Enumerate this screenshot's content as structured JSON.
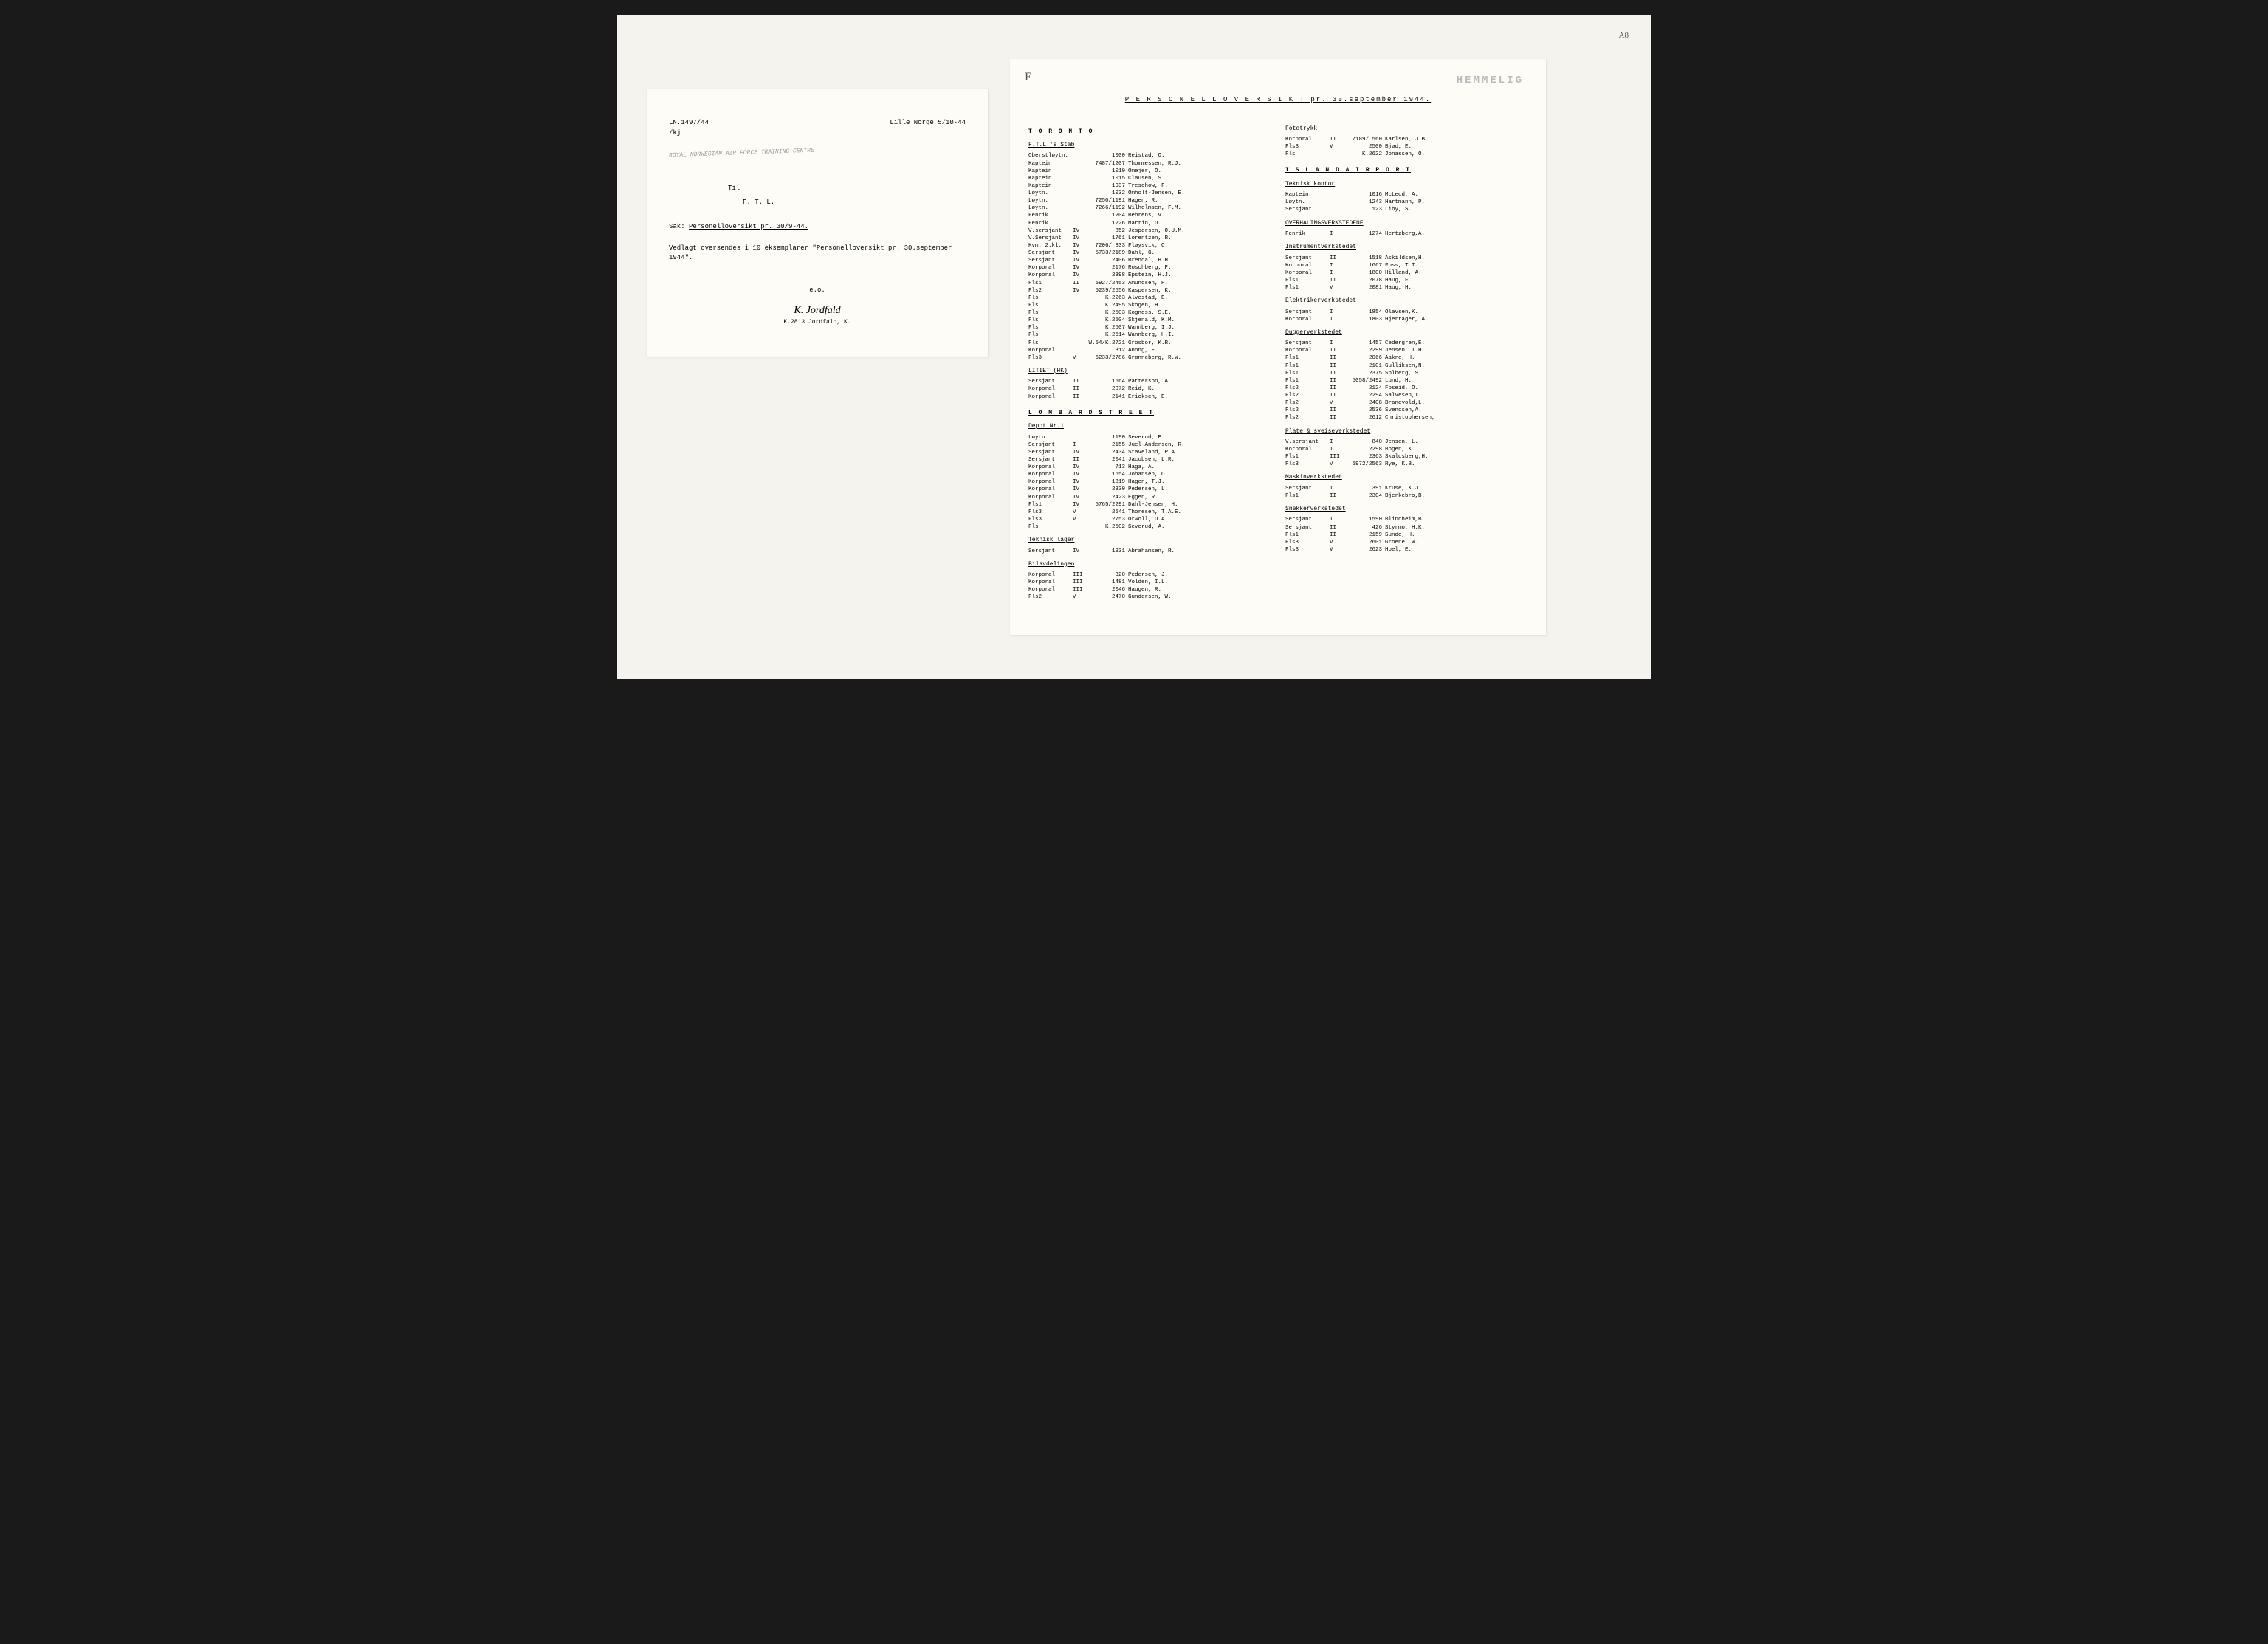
{
  "left": {
    "ref": "LN.1497/44",
    "ref2": "/kj",
    "location_date": "Lille Norge 5/10-44",
    "page_mark": "A8",
    "stamp": "ROYAL NORWEGIAN AIR FORCE TRAINING CENTRE",
    "stamp_hand": "7/10",
    "til": "Til",
    "ftl": "F. T. L.",
    "sak_label": "Sak:",
    "sak_text": "Personelloversikt pr. 30/9-44.",
    "body": "Vedlagt oversendes i 10 eksemplarer \"Personelloversikt pr. 30.september 1944\".",
    "eo": "e.o.",
    "sig_name": "K.2813 Jordfald, K."
  },
  "right": {
    "hemmelig": "HEMMELIG",
    "hand_e": "E",
    "title": "P E R S O N E L L O V E R S I K T  pr. 30.september 1944.",
    "toronto": "T O R O N T O",
    "ftl_stab": "F.T.L.'s Stab",
    "stab": [
      {
        "rank": "Oberstløytn.",
        "g": "",
        "n": "1000",
        "name": "Reistad, O."
      },
      {
        "rank": "Kaptein",
        "g": "",
        "n": "7487/1207",
        "name": "Thommessen, R.J."
      },
      {
        "rank": "Kaptein",
        "g": "",
        "n": "1010",
        "name": "Omejer, O."
      },
      {
        "rank": "Kaptein",
        "g": "",
        "n": "1015",
        "name": "Clausen, S."
      },
      {
        "rank": "Kaptein",
        "g": "",
        "n": "1037",
        "name": "Treschow, F."
      },
      {
        "rank": "Løytn.",
        "g": "",
        "n": "1032",
        "name": "Omholt-Jensen, E."
      },
      {
        "rank": "Løytn.",
        "g": "",
        "n": "7250/1191",
        "name": "Hagen, R."
      },
      {
        "rank": "Løytn.",
        "g": "",
        "n": "7266/1192",
        "name": "Wilhelmsen, F.M."
      },
      {
        "rank": "Fenrik",
        "g": "",
        "n": "1204",
        "name": "Behrens, V."
      },
      {
        "rank": "Fenrik",
        "g": "",
        "n": "1226",
        "name": "Martin, O."
      },
      {
        "rank": "V.sersjant",
        "g": "IV",
        "n": "852",
        "name": "Jespersen, O.U.M."
      },
      {
        "rank": "V.Sersjant",
        "g": "IV",
        "n": "1761",
        "name": "Lorentzen, R."
      },
      {
        "rank": "Kvm. 2.kl.",
        "g": "IV",
        "n": "7206/ 833",
        "name": "Fløysvik, O."
      },
      {
        "rank": "Sersjant",
        "g": "IV",
        "n": "5733/2189",
        "name": "Dahl, G."
      },
      {
        "rank": "Sersjant",
        "g": "IV",
        "n": "2406",
        "name": "Brendal, H.H."
      },
      {
        "rank": "Korporal",
        "g": "IV",
        "n": "2176",
        "name": "Roschberg, P."
      },
      {
        "rank": "Korporal",
        "g": "IV",
        "n": "2398",
        "name": "Epstein, H.J."
      },
      {
        "rank": "Fls1",
        "g": "II",
        "n": "5927/2453",
        "name": "Amundsen, P."
      },
      {
        "rank": "Fls2",
        "g": "IV",
        "n": "5239/2556",
        "name": "Kaspersen, K."
      },
      {
        "rank": "Fls",
        "g": "",
        "n": "K.2263",
        "name": "Alvestad, E."
      },
      {
        "rank": "Fls",
        "g": "",
        "n": "K.2495",
        "name": "Skogen, H."
      },
      {
        "rank": "Fls",
        "g": "",
        "n": "K.2503",
        "name": "Kogness, S.E."
      },
      {
        "rank": "Fls",
        "g": "",
        "n": "K.2504",
        "name": "Skjenald, K.M."
      },
      {
        "rank": "Fls",
        "g": "",
        "n": "K.2507",
        "name": "Wannberg, I.J."
      },
      {
        "rank": "Fls",
        "g": "",
        "n": "K.2514",
        "name": "Wannberg, H.I."
      },
      {
        "rank": "Fls",
        "g": "",
        "n": "W.54/K.2721",
        "name": "Grosbor, K.R."
      },
      {
        "rank": "Korporal",
        "g": "",
        "n": "312",
        "name": "Anong, E."
      },
      {
        "rank": "Fls3",
        "g": "V",
        "n": "6233/2786",
        "name": "Grønneberg, R.W."
      }
    ],
    "litiet": "LITIET (HK)",
    "litiet_rows": [
      {
        "rank": "Sersjant",
        "g": "II",
        "n": "1664",
        "name": "Patterson, A."
      },
      {
        "rank": "Korporal",
        "g": "II",
        "n": "2072",
        "name": "Reid, K."
      },
      {
        "rank": "Korporal",
        "g": "II",
        "n": "2141",
        "name": "Ericksen, E."
      }
    ],
    "lombard": "L O M B A R D  S T R E E T",
    "depot": "Depot Nr.1",
    "depot_rows": [
      {
        "rank": "Løytn.",
        "g": "",
        "n": "1190",
        "name": "Severud, E."
      },
      {
        "rank": "Sersjant",
        "g": "I",
        "n": "2155",
        "name": "Juel-Andersen, R."
      },
      {
        "rank": "Sersjant",
        "g": "IV",
        "n": "2434",
        "name": "Staveland, P.A."
      },
      {
        "rank": "Sersjant",
        "g": "II",
        "n": "2041",
        "name": "Jacobsen, L.R."
      },
      {
        "rank": "Korporal",
        "g": "IV",
        "n": "713",
        "name": "Haga, A."
      },
      {
        "rank": "Korporal",
        "g": "IV",
        "n": "1654",
        "name": "Johansen, O."
      },
      {
        "rank": "Korporal",
        "g": "IV",
        "n": "1819",
        "name": "Hagen, T.J."
      },
      {
        "rank": "Korporal",
        "g": "IV",
        "n": "2330",
        "name": "Pedersen, L."
      },
      {
        "rank": "Korporal",
        "g": "IV",
        "n": "2423",
        "name": "Eggen, R."
      },
      {
        "rank": "Fls1",
        "g": "IV",
        "n": "5765/2291",
        "name": "Dahl-Jensen, H."
      },
      {
        "rank": "Fls3",
        "g": "V",
        "n": "2541",
        "name": "Thoresen, T.A.E."
      },
      {
        "rank": "Fls3",
        "g": "V",
        "n": "2753",
        "name": "Orwoll, O.A."
      },
      {
        "rank": "Fls",
        "g": "",
        "n": "K.2502",
        "name": "Severud, A."
      }
    ],
    "teknisk_lager": "Teknisk lager",
    "teknisk_rows": [
      {
        "rank": "Sersjant",
        "g": "IV",
        "n": "1931",
        "name": "Abrahamsen, R."
      }
    ],
    "bilavdelingen": "Bilavdelingen",
    "bil_rows": [
      {
        "rank": "Korporal",
        "g": "III",
        "n": "320",
        "name": "Pedersen, J."
      },
      {
        "rank": "Korporal",
        "g": "III",
        "n": "1481",
        "name": "Volden, I.L."
      },
      {
        "rank": "Korporal",
        "g": "III",
        "n": "2046",
        "name": "Haugen, R."
      },
      {
        "rank": "Fls2",
        "g": "V",
        "n": "2470",
        "name": "Gundersen, W."
      }
    ],
    "fototrykk": "Fototrykk",
    "foto_rows": [
      {
        "rank": "Korporal",
        "g": "II",
        "n": "7189/ 560",
        "name": "Karlsen, J.B."
      },
      {
        "rank": "Fls3",
        "g": "V",
        "n": "2500",
        "name": "Bjød, E."
      },
      {
        "rank": "Fls",
        "g": "",
        "n": "K.2622",
        "name": "Jonassen, O."
      }
    ],
    "island": "I S L A N D  A I R P O R T",
    "teknisk_kontor": "Teknisk kontor",
    "tk_rows": [
      {
        "rank": "Kaptein",
        "g": "",
        "n": "1016",
        "name": "McLeod, A."
      },
      {
        "rank": "Løytn.",
        "g": "",
        "n": "1243",
        "name": "Hartmann, P."
      },
      {
        "rank": "Sersjant",
        "g": "",
        "n": "123",
        "name": "Liby, S."
      }
    ],
    "overhalings": "OVERHALINGSVERKSTEDENE",
    "over_rows": [
      {
        "rank": "Fenrik",
        "g": "I",
        "n": "1274",
        "name": "Hertzberg,A."
      }
    ],
    "instrument": "Instrumentverkstedet",
    "inst_rows": [
      {
        "rank": "Sersjant",
        "g": "II",
        "n": "1518",
        "name": "Askildsen,H."
      },
      {
        "rank": "Korporal",
        "g": "I",
        "n": "1667",
        "name": "Foss, T.I."
      },
      {
        "rank": "Korporal",
        "g": "I",
        "n": "1800",
        "name": "Hilland, A."
      },
      {
        "rank": "Fls1",
        "g": "II",
        "n": "2078",
        "name": "Haug, F."
      },
      {
        "rank": "Fls1",
        "g": "V",
        "n": "2081",
        "name": "Haug, H."
      }
    ],
    "elektriker": "Elektrikerverkstedet",
    "elek_rows": [
      {
        "rank": "Sersjant",
        "g": "I",
        "n": "1854",
        "name": "Olavsen,K."
      },
      {
        "rank": "Korporal",
        "g": "I",
        "n": "1803",
        "name": "Hjertager, A."
      }
    ],
    "dugger": "Duggerverkstedet",
    "dug_rows": [
      {
        "rank": "Sersjant",
        "g": "I",
        "n": "1457",
        "name": "Cedergren,E."
      },
      {
        "rank": "Korporal",
        "g": "II",
        "n": "2299",
        "name": "Jensen, T.H."
      },
      {
        "rank": "Fls1",
        "g": "II",
        "n": "2066",
        "name": "Aakre, H."
      },
      {
        "rank": "Fls1",
        "g": "II",
        "n": "2101",
        "name": "Gulliksen,N."
      },
      {
        "rank": "Fls1",
        "g": "II",
        "n": "2375",
        "name": "Solberg, S."
      },
      {
        "rank": "Fls1",
        "g": "II",
        "n": "5058/2492",
        "name": "Lund, H."
      },
      {
        "rank": "Fls2",
        "g": "II",
        "n": "2124",
        "name": "Foseid, O."
      },
      {
        "rank": "Fls2",
        "g": "II",
        "n": "2294",
        "name": "Salvesen,T."
      },
      {
        "rank": "Fls2",
        "g": "V",
        "n": "2408",
        "name": "Brandvold,L."
      },
      {
        "rank": "Fls2",
        "g": "II",
        "n": "2536",
        "name": "Svendsen,A."
      },
      {
        "rank": "Fls2",
        "g": "II",
        "n": "2612",
        "name": "Christophersen,"
      }
    ],
    "plate": "Plate & sveiseverkstedet",
    "plate_rows": [
      {
        "rank": "V.sersjant",
        "g": "I",
        "n": "840",
        "name": "Jensen, L."
      },
      {
        "rank": "Korporal",
        "g": "I",
        "n": "2298",
        "name": "Bogen, K."
      },
      {
        "rank": "Fls1",
        "g": "III",
        "n": "2363",
        "name": "Skaldsberg,H."
      },
      {
        "rank": "Fls3",
        "g": "V",
        "n": "5972/2563",
        "name": "Rye, K.B."
      }
    ],
    "maskin": "Maskinverkstedet",
    "maskin_rows": [
      {
        "rank": "Sersjant",
        "g": "I",
        "n": "391",
        "name": "Kruse, K.J."
      },
      {
        "rank": "Fls1",
        "g": "II",
        "n": "2304",
        "name": "Bjerkebro,B."
      }
    ],
    "snekker": "Snekkerverkstedet",
    "snekker_rows": [
      {
        "rank": "Sersjant",
        "g": "I",
        "n": "1590",
        "name": "Blindheim,B."
      },
      {
        "rank": "Sersjant",
        "g": "II",
        "n": "426",
        "name": "Styrmo, H.K."
      },
      {
        "rank": "Fls1",
        "g": "II",
        "n": "2159",
        "name": "Sunde, H."
      },
      {
        "rank": "Fls3",
        "g": "V",
        "n": "2601",
        "name": "Groene, W."
      },
      {
        "rank": "Fls3",
        "g": "V",
        "n": "2623",
        "name": "Hoel, E."
      }
    ]
  }
}
